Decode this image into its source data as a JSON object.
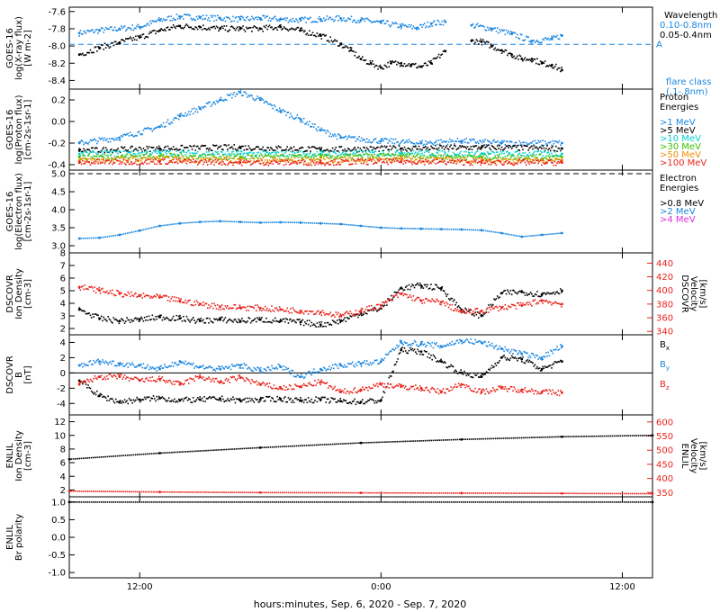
{
  "time_axis": {
    "label": "hours:minutes, Sep.  6, 2020 - Sep.  7, 2020",
    "range_hours": [
      8.5,
      37.5
    ],
    "ticks": [
      {
        "h": 12,
        "label": "12:00"
      },
      {
        "h": 24,
        "label": "0:00"
      },
      {
        "h": 36,
        "label": "12:00"
      }
    ]
  },
  "colors": {
    "black": "#000000",
    "blue": "#1a86e0",
    "red": "#e8231c",
    "cyan": "#00d0d0",
    "green": "#40c000",
    "orange": "#f09000",
    "magenta": "#e030e0"
  },
  "chart_data": [
    {
      "id": "xray",
      "type": "scatter",
      "ylabel": [
        "GOES-16",
        "log(X-ray flux)",
        "[W m-2]"
      ],
      "ylim": [
        -8.5,
        -7.55
      ],
      "yticks": [
        -8.4,
        -8.2,
        -8.0,
        -7.8,
        -7.6
      ],
      "ytick_labels": [
        "-8.4",
        "-8.2",
        "-8.0",
        "-7.8",
        "-7.6"
      ],
      "reference_line": {
        "value": -7.98,
        "label": "A",
        "style": "dashed",
        "color": "#1a86e0"
      },
      "legend_title": "Wavelength",
      "legend": [
        {
          "label": "0.10-0.8nm",
          "color": "#1a86e0"
        },
        {
          "label": "0.05-0.4nm",
          "color": "#000000"
        }
      ],
      "note_lines": [
        "flare class",
        "(.1-.8nm)"
      ],
      "series": [
        {
          "name": "0.10-0.8nm",
          "color": "#1a86e0",
          "x": [
            9.0,
            10.0,
            11.0,
            12.0,
            13.0,
            14.0,
            15.0,
            16.0,
            17.0,
            18.0,
            19.0,
            20.0,
            21.0,
            22.0,
            23.0,
            24.0,
            25.0,
            25.8,
            26.5,
            27.2,
            27.8,
            28.5,
            29.5,
            30.5,
            31.5,
            32.5,
            33.0
          ],
          "y": [
            -7.85,
            -7.82,
            -7.8,
            -7.78,
            -7.7,
            -7.66,
            -7.67,
            -7.68,
            -7.69,
            -7.68,
            -7.69,
            -7.7,
            -7.69,
            -7.68,
            -7.7,
            -7.73,
            -7.77,
            -7.79,
            -7.74,
            -7.72,
            null,
            -7.76,
            -7.8,
            -7.86,
            -7.94,
            -7.92,
            -7.88
          ]
        },
        {
          "name": "0.05-0.4nm",
          "color": "#000000",
          "x": [
            9.0,
            10.0,
            11.0,
            12.0,
            13.0,
            14.0,
            15.0,
            16.0,
            17.0,
            18.0,
            19.0,
            20.0,
            21.0,
            22.0,
            22.5,
            23.0,
            23.5,
            24.0,
            24.5,
            25.0,
            25.5,
            26.0,
            26.5,
            27.2,
            27.8,
            28.5,
            29.0,
            29.5,
            30.0,
            30.5,
            31.0,
            31.5,
            32.0,
            32.5,
            33.0
          ],
          "y": [
            -8.1,
            -8.02,
            -7.96,
            -7.9,
            -7.82,
            -7.77,
            -7.78,
            -7.8,
            -7.8,
            -7.8,
            -7.78,
            -7.82,
            -7.88,
            -7.98,
            -8.05,
            -8.15,
            -8.2,
            -8.25,
            -8.2,
            -8.2,
            -8.22,
            -8.24,
            -8.2,
            -8.06,
            null,
            -7.94,
            -7.95,
            -8.0,
            -8.05,
            -8.1,
            -8.15,
            -8.15,
            -8.2,
            -8.22,
            -8.28
          ]
        }
      ]
    },
    {
      "id": "protons",
      "type": "scatter",
      "ylabel": [
        "GOES-16",
        "log(Proton flux)",
        "[cm-2s-1sr-1]"
      ],
      "ylim": [
        -0.45,
        0.3
      ],
      "yticks": [
        -0.4,
        -0.2,
        0.0,
        0.2
      ],
      "ytick_labels": [
        "-0.4",
        "-0.2",
        "0.0",
        "0.2"
      ],
      "legend_title_lines": [
        "Proton",
        "Energies"
      ],
      "legend": [
        {
          "label": ">1 MeV",
          "color": "#1a86e0"
        },
        {
          "label": ">5 MeV",
          "color": "#000000"
        },
        {
          "label": ">10 MeV",
          "color": "#00d0d0"
        },
        {
          "label": ">30 MeV",
          "color": "#40c000"
        },
        {
          "label": ">50 MeV",
          "color": "#f09000"
        },
        {
          "label": ">100 MeV",
          "color": "#e8231c"
        }
      ],
      "series": [
        {
          "name": ">1 MeV",
          "color": "#1a86e0",
          "x": [
            9,
            11,
            13,
            14,
            15,
            16,
            17,
            18,
            19,
            20,
            21,
            22,
            24,
            26,
            28,
            30,
            33
          ],
          "y": [
            -0.2,
            -0.15,
            -0.05,
            0.05,
            0.12,
            0.2,
            0.27,
            0.2,
            0.1,
            0.02,
            -0.08,
            -0.15,
            -0.18,
            -0.2,
            -0.18,
            -0.2,
            -0.2
          ]
        },
        {
          "name": ">5 MeV",
          "color": "#000000",
          "x": [
            9,
            13,
            17,
            21,
            25,
            29,
            33
          ],
          "y": [
            -0.27,
            -0.25,
            -0.24,
            -0.26,
            -0.25,
            -0.24,
            -0.25
          ]
        },
        {
          "name": ">10 MeV",
          "color": "#00d0d0",
          "x": [
            9,
            13,
            17,
            21,
            25,
            29,
            33
          ],
          "y": [
            -0.3,
            -0.29,
            -0.3,
            -0.3,
            -0.29,
            -0.3,
            -0.3
          ]
        },
        {
          "name": ">30 MeV",
          "color": "#40c000",
          "x": [
            9,
            13,
            17,
            21,
            25,
            29,
            33
          ],
          "y": [
            -0.33,
            -0.32,
            -0.33,
            -0.33,
            -0.32,
            -0.33,
            -0.33
          ]
        },
        {
          "name": ">50 MeV",
          "color": "#f09000",
          "x": [
            9,
            13,
            17,
            21,
            25,
            29,
            33
          ],
          "y": [
            -0.36,
            -0.35,
            -0.36,
            -0.36,
            -0.35,
            -0.36,
            -0.36
          ]
        },
        {
          "name": ">100 MeV",
          "color": "#e8231c",
          "x": [
            9,
            13,
            17,
            21,
            25,
            29,
            33
          ],
          "y": [
            -0.38,
            -0.37,
            -0.38,
            -0.38,
            -0.37,
            -0.38,
            -0.38
          ]
        }
      ]
    },
    {
      "id": "electrons",
      "type": "line",
      "ylabel": [
        "GOES-16",
        "log(Electron flux)",
        "[cm-2s-1sr-1]"
      ],
      "ylim": [
        2.8,
        5.1
      ],
      "yticks": [
        3.0,
        3.5,
        4.0,
        4.5,
        5.0
      ],
      "ytick_labels": [
        "3.0",
        "3.5",
        "4.0",
        "4.5",
        "5.0"
      ],
      "reference_line": {
        "value": 5.0,
        "style": "dashed",
        "color": "#000000"
      },
      "legend_title_lines": [
        "Electron",
        "Energies"
      ],
      "legend": [
        {
          "label": ">0.8 MeV",
          "color": "#000000"
        },
        {
          "label": ">2 MeV",
          "color": "#1a86e0"
        },
        {
          "label": ">4 MeV",
          "color": "#e030e0"
        }
      ],
      "series": [
        {
          "name": ">2 MeV",
          "color": "#1a86e0",
          "x": [
            9,
            10,
            11,
            12,
            13,
            14,
            15,
            16,
            17,
            18,
            19,
            20,
            21,
            22,
            23,
            24,
            25,
            26,
            27,
            28,
            29,
            30,
            31,
            32,
            33
          ],
          "y": [
            3.2,
            3.22,
            3.3,
            3.42,
            3.55,
            3.62,
            3.66,
            3.68,
            3.66,
            3.64,
            3.65,
            3.64,
            3.62,
            3.6,
            3.55,
            3.5,
            3.48,
            3.47,
            3.46,
            3.45,
            3.43,
            3.35,
            3.25,
            3.3,
            3.35
          ]
        }
      ]
    },
    {
      "id": "dscovr-plasma",
      "type": "scatter",
      "ylabel": [
        "DSCOVR",
        "Ion Density",
        "[cm-3]"
      ],
      "ylim": [
        1.5,
        8.0
      ],
      "yticks": [
        2,
        3,
        4,
        5,
        6,
        7,
        8
      ],
      "ytick_labels": [
        "2",
        "3",
        "4",
        "5",
        "6",
        "7",
        "8"
      ],
      "right_ylabel": [
        "DSCOVR",
        "Velocity",
        "[km/s]"
      ],
      "right_ylim": [
        335,
        455
      ],
      "right_yticks": [
        340,
        360,
        380,
        400,
        420,
        440
      ],
      "right_ytick_labels": [
        "340",
        "360",
        "380",
        "400",
        "420",
        "440"
      ],
      "series": [
        {
          "name": "Ion Density",
          "color": "#000000",
          "axis": "left",
          "x": [
            9,
            10,
            11,
            12,
            13,
            14,
            15,
            16,
            17,
            18,
            19,
            20,
            21,
            22,
            23,
            24,
            25,
            26,
            27,
            28,
            29,
            30,
            31,
            32,
            33
          ],
          "y": [
            3.5,
            2.8,
            2.6,
            2.7,
            2.9,
            2.8,
            2.6,
            2.7,
            2.6,
            2.7,
            2.6,
            2.5,
            2.3,
            2.6,
            3.2,
            3.6,
            5.2,
            5.4,
            5.2,
            3.5,
            3.0,
            4.8,
            4.9,
            4.7,
            5.0
          ]
        },
        {
          "name": "Velocity",
          "color": "#e8231c",
          "axis": "right",
          "x": [
            9,
            10,
            11,
            12,
            13,
            14,
            15,
            16,
            17,
            18,
            19,
            20,
            21,
            22,
            23,
            24,
            25,
            26,
            27,
            28,
            29,
            30,
            31,
            32,
            33
          ],
          "y": [
            405,
            400,
            395,
            392,
            390,
            385,
            380,
            376,
            375,
            374,
            372,
            370,
            368,
            363,
            370,
            378,
            395,
            385,
            383,
            368,
            370,
            375,
            378,
            385,
            380
          ]
        }
      ]
    },
    {
      "id": "dscovr-mag",
      "type": "scatter",
      "ylabel": [
        "DSCOVR",
        "B",
        "[nT]"
      ],
      "ylim": [
        -5.5,
        5.0
      ],
      "yticks": [
        -4,
        -2,
        0,
        2,
        4
      ],
      "ytick_labels": [
        "-4",
        "-2",
        "0",
        "2",
        "4"
      ],
      "zero_line": true,
      "legend": [
        {
          "label": "B",
          "sub": "x",
          "color": "#000000"
        },
        {
          "label": "B",
          "sub": "y",
          "color": "#1a86e0"
        },
        {
          "label": "B",
          "sub": "z",
          "color": "#e8231c"
        }
      ],
      "series": [
        {
          "name": "Bx",
          "color": "#000000",
          "x": [
            9,
            10,
            11,
            12,
            13,
            14,
            15,
            16,
            17,
            18,
            19,
            20,
            21,
            22,
            23,
            24,
            25,
            26,
            27,
            28,
            29,
            30,
            31,
            32,
            33
          ],
          "y": [
            -1.0,
            -3.0,
            -3.8,
            -3.5,
            -3.3,
            -3.6,
            -3.5,
            -3.4,
            -3.6,
            -3.5,
            -3.4,
            -3.6,
            -3.5,
            -3.7,
            -3.8,
            -3.6,
            3.0,
            2.8,
            1.5,
            0.0,
            -0.5,
            2.0,
            1.8,
            0.5,
            1.5
          ]
        },
        {
          "name": "By",
          "color": "#1a86e0",
          "x": [
            9,
            10,
            11,
            12,
            13,
            14,
            15,
            16,
            17,
            18,
            19,
            20,
            21,
            22,
            23,
            24,
            25,
            26,
            27,
            28,
            29,
            30,
            31,
            32,
            33
          ],
          "y": [
            1.0,
            1.5,
            1.2,
            1.0,
            0.5,
            1.5,
            0.8,
            0.5,
            1.0,
            0.3,
            0.8,
            -0.5,
            0.5,
            1.0,
            1.2,
            1.5,
            4.0,
            3.8,
            3.5,
            4.2,
            4.0,
            3.2,
            2.5,
            2.0,
            3.5
          ]
        },
        {
          "name": "Bz",
          "color": "#e8231c",
          "x": [
            9,
            10,
            11,
            12,
            13,
            14,
            15,
            16,
            17,
            18,
            19,
            20,
            21,
            22,
            23,
            24,
            25,
            26,
            27,
            28,
            29,
            30,
            31,
            32,
            33
          ],
          "y": [
            -1.5,
            -0.5,
            -0.5,
            -1.0,
            -0.8,
            -1.5,
            -0.5,
            -1.2,
            -0.6,
            -1.5,
            -2.0,
            -1.8,
            -1.2,
            -2.5,
            -2.2,
            -1.5,
            -1.8,
            -2.0,
            -2.5,
            -1.5,
            -2.5,
            -2.0,
            -2.2,
            -2.5,
            -2.6
          ]
        }
      ]
    },
    {
      "id": "enlil-plasma",
      "type": "line",
      "ylabel": [
        "ENLIL",
        "Ion Density",
        "[cm-3]"
      ],
      "ylim": [
        1.0,
        13.0
      ],
      "yticks": [
        2,
        4,
        6,
        8,
        10,
        12
      ],
      "ytick_labels": [
        "2",
        "4",
        "6",
        "8",
        "10",
        "12"
      ],
      "right_ylabel": [
        "ENLIL",
        "Velocity",
        "[km/s]"
      ],
      "right_ylim": [
        335,
        625
      ],
      "right_yticks": [
        350,
        400,
        450,
        500,
        550,
        600
      ],
      "right_ytick_labels": [
        "350",
        "400",
        "450",
        "500",
        "550",
        "600"
      ],
      "series": [
        {
          "name": "Ion Density",
          "color": "#000000",
          "axis": "left",
          "x": [
            8.5,
            13,
            18,
            23,
            28,
            33,
            37.5
          ],
          "y": [
            6.5,
            7.4,
            8.2,
            8.9,
            9.4,
            9.8,
            10.0
          ]
        },
        {
          "name": "Velocity",
          "color": "#e8231c",
          "axis": "right",
          "x": [
            8.5,
            13,
            18,
            23,
            28,
            33,
            37.5
          ],
          "y": [
            355,
            352,
            350,
            349,
            348,
            347,
            346
          ]
        }
      ]
    },
    {
      "id": "enlil-polarity",
      "type": "line",
      "ylabel": [
        "ENLIL",
        "Br polarity"
      ],
      "ylim": [
        -1.15,
        1.15
      ],
      "yticks": [
        -1.0,
        -0.5,
        0.0,
        0.5,
        1.0
      ],
      "ytick_labels": [
        "-1.0",
        "-0.5",
        "0.0",
        "0.5",
        "1.0"
      ],
      "series": [
        {
          "name": "Br polarity",
          "color": "#000000",
          "axis": "left",
          "x": [
            8.5,
            37.5
          ],
          "y": [
            1.0,
            1.0
          ]
        }
      ]
    }
  ]
}
